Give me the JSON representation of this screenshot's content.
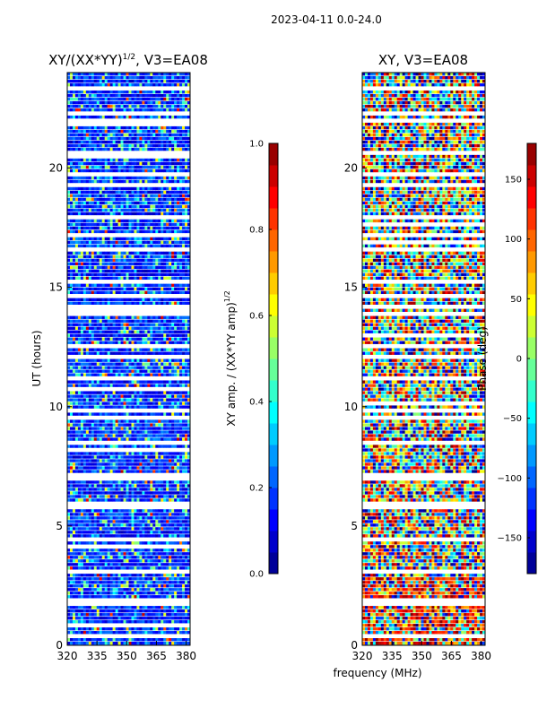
{
  "header": {
    "suptitle": "2023-04-11 0.0-24.0"
  },
  "chart_data": [
    {
      "type": "heatmap",
      "title": "XY/(XX*YY)^1/2, V3=EA08",
      "title_main": "XY/(XX*YY)",
      "title_exp": "1/2",
      "title_suffix": ", V3=EA08",
      "xlabel": "",
      "ylabel": "UT (hours)",
      "xlim": [
        320,
        382
      ],
      "ylim": [
        0,
        24
      ],
      "xticks": [
        320,
        335,
        350,
        365,
        380
      ],
      "yticks": [
        0,
        5,
        10,
        15,
        20
      ],
      "colorbar": {
        "label_main": "XY amp. / (XX*YY amp)",
        "label_exp": "1/2",
        "range": [
          0.0,
          1.0
        ],
        "ticks": [
          "0.0",
          "0.2",
          "0.4",
          "0.6",
          "0.8",
          "1.0"
        ]
      },
      "description": "Normalized cross-correlation amplitude, mostly low (0.0-0.3) with scattered higher values and horizontal flagged gaps"
    },
    {
      "type": "heatmap",
      "title": "XY, V3=EA08",
      "xlabel": "frequency (MHz)",
      "ylabel": "",
      "xlim": [
        320,
        382
      ],
      "ylim": [
        0,
        24
      ],
      "xticks": [
        320,
        335,
        350,
        365,
        380
      ],
      "yticks": [
        0,
        5,
        10,
        15,
        20
      ],
      "colorbar": {
        "label": "Phase (deg)",
        "range": [
          -180,
          180
        ],
        "ticks": [
          "150",
          "100",
          "50",
          "0",
          "−50",
          "−100",
          "−150"
        ]
      },
      "description": "Cross-correlation phase, noisy across full -180 to 180 range with horizontal flagged gaps"
    }
  ],
  "xticks_text": {
    "t320": "320",
    "t335": "335",
    "t350": "350",
    "t365": "365",
    "t380": "380"
  },
  "yticks_text": {
    "t0": "0",
    "t5": "5",
    "t10": "10",
    "t15": "15",
    "t20": "20"
  }
}
